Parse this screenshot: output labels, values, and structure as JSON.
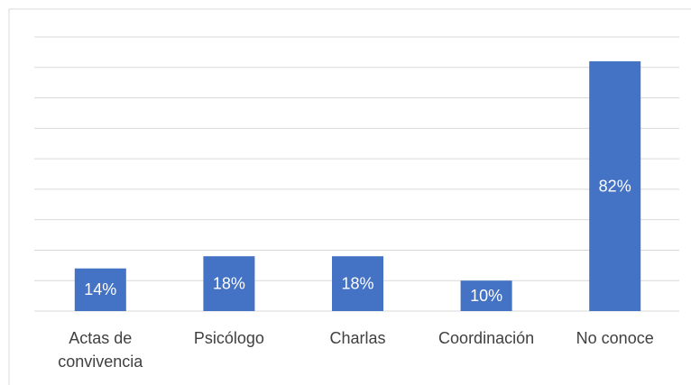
{
  "chart_data": {
    "type": "bar",
    "categories": [
      "Actas de convivencia",
      "Psicólogo",
      "Charlas",
      "Coordinación",
      "No conoce"
    ],
    "values": [
      14,
      18,
      18,
      10,
      82
    ],
    "value_labels": [
      "14%",
      "18%",
      "18%",
      "10%",
      "82%"
    ],
    "color": "#4472c4",
    "ylim": [
      0,
      90
    ],
    "yticks": [
      0,
      10,
      20,
      30,
      40,
      50,
      60,
      70,
      80,
      90
    ],
    "grid": true
  }
}
